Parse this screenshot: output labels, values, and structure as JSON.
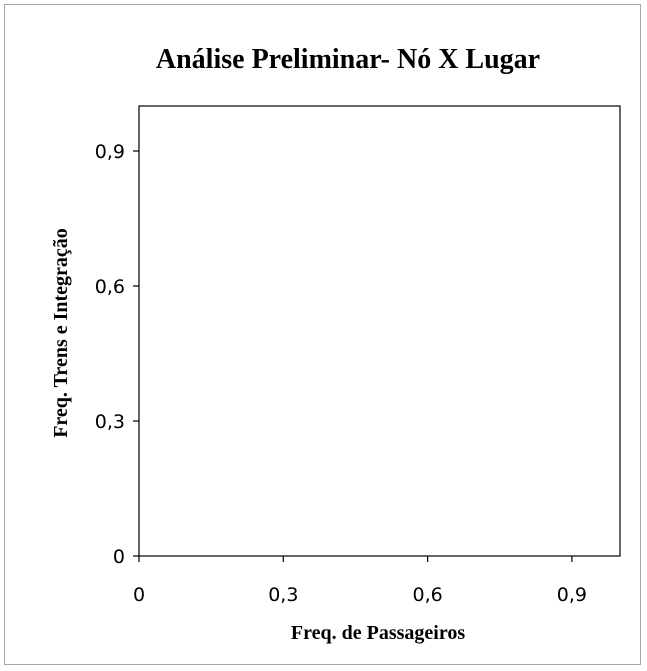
{
  "chart_data": {
    "type": "scatter",
    "title": "Análise Preliminar- Nó X Lugar",
    "xlabel": "Freq. de Passageiros",
    "ylabel": "Freq. Trens e Integração",
    "xlim": [
      0,
      1
    ],
    "ylim": [
      0,
      1
    ],
    "x_ticks": [
      0,
      0.3,
      0.6,
      0.9
    ],
    "y_ticks": [
      0,
      0.3,
      0.6,
      0.9
    ],
    "x_tick_labels": [
      "0",
      "0,3",
      "0,6",
      "0,9"
    ],
    "y_tick_labels": [
      "0",
      "0,3",
      "0,6",
      "0,9"
    ],
    "grid": false,
    "series": [],
    "colors": {
      "axis": "#000000",
      "frame_border": "#a6a6a6",
      "background": "#ffffff"
    }
  }
}
